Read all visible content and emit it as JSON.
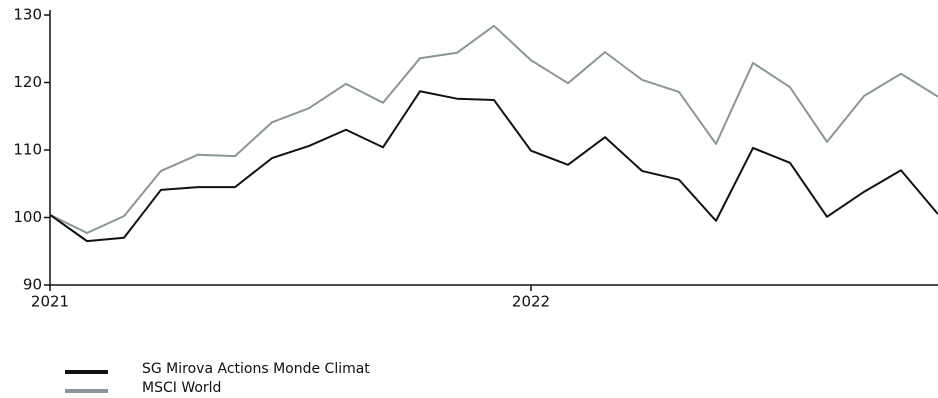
{
  "chart_data": {
    "type": "line",
    "x": [
      0,
      1,
      2,
      3,
      4,
      5,
      6,
      7,
      8,
      9,
      10,
      11,
      12,
      13,
      14,
      15,
      16,
      17,
      18,
      19,
      20,
      21,
      22,
      23,
      24
    ],
    "xlim": [
      0,
      24
    ],
    "xticks": [
      {
        "value": 0,
        "label": "2021"
      },
      {
        "value": 13,
        "label": "2022"
      }
    ],
    "ylim": [
      90,
      130
    ],
    "yticks": [
      90,
      100,
      110,
      120,
      130
    ],
    "grid": false,
    "series": [
      {
        "name": "SG Mirova Actions Monde Climat",
        "color": "#111111",
        "values": [
          100.4,
          96.5,
          97.0,
          104.1,
          104.5,
          104.5,
          108.8,
          110.6,
          113.0,
          110.4,
          118.7,
          117.6,
          117.4,
          109.9,
          107.8,
          111.9,
          106.9,
          105.6,
          99.5,
          110.3,
          108.1,
          100.1,
          103.8,
          107.0,
          100.5
        ]
      },
      {
        "name": "MSCI World",
        "color": "#8a9699",
        "values": [
          100.4,
          97.7,
          100.2,
          106.9,
          109.3,
          109.1,
          114.1,
          116.2,
          119.8,
          117.0,
          123.6,
          124.4,
          128.4,
          123.3,
          119.9,
          124.5,
          120.4,
          118.6,
          110.9,
          122.9,
          119.3,
          111.2,
          118.0,
          121.3,
          117.9
        ]
      }
    ]
  }
}
